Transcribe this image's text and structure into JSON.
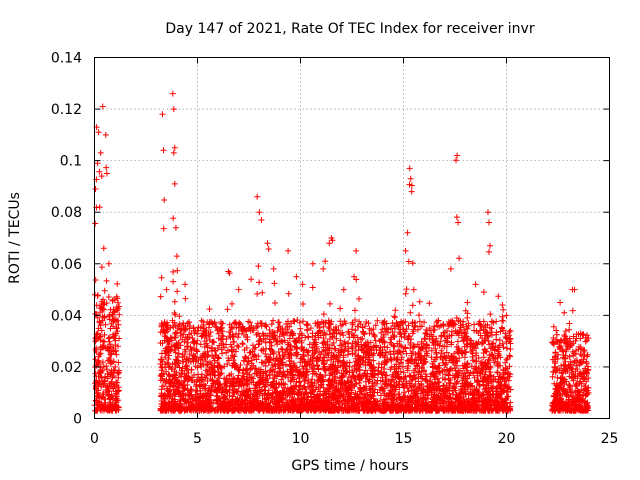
{
  "chart_data": {
    "type": "scatter",
    "title": "Day 147 of 2021, Rate Of TEC Index for receiver invr",
    "xlabel": "GPS time / hours",
    "ylabel": "ROTI / TECUs",
    "xlim": [
      0,
      25
    ],
    "ylim": [
      0,
      0.14
    ],
    "xticks": [
      0,
      5,
      10,
      15,
      20,
      25
    ],
    "yticks": [
      0,
      0.02,
      0.04,
      0.06,
      0.08,
      0.1,
      0.12,
      0.14
    ],
    "xtick_labels": [
      "0",
      "5",
      "10",
      "15",
      "20",
      "25"
    ],
    "ytick_labels": [
      "0",
      "0.02",
      "0.04",
      "0.06",
      "0.08",
      "0.1",
      "0.12",
      "0.14"
    ],
    "grid": true,
    "marker": "plus",
    "series": [
      {
        "name": "ROTI",
        "color": "#ff0000",
        "segments": [
          {
            "x_start": 0.0,
            "x_end": 1.2,
            "typical_max": 0.045
          },
          {
            "x_start": 3.2,
            "x_end": 20.2,
            "typical_max": 0.035
          },
          {
            "x_start": 22.2,
            "x_end": 24.0,
            "typical_max": 0.03
          }
        ],
        "peaks": [
          [
            0.1,
            0.113
          ],
          [
            0.15,
            0.099
          ],
          [
            0.2,
            0.111
          ],
          [
            0.3,
            0.103
          ],
          [
            0.4,
            0.121
          ],
          [
            0.55,
            0.11
          ],
          [
            0.05,
            0.089
          ],
          [
            0.35,
            0.094
          ],
          [
            0.6,
            0.095
          ],
          [
            0.25,
            0.082
          ],
          [
            0.45,
            0.066
          ],
          [
            0.7,
            0.06
          ],
          [
            0.9,
            0.046
          ],
          [
            1.1,
            0.042
          ],
          [
            3.3,
            0.118
          ],
          [
            3.35,
            0.104
          ],
          [
            3.8,
            0.126
          ],
          [
            3.85,
            0.12
          ],
          [
            3.85,
            0.103
          ],
          [
            3.9,
            0.105
          ],
          [
            3.9,
            0.091
          ],
          [
            3.95,
            0.074
          ],
          [
            4.0,
            0.063
          ],
          [
            3.5,
            0.05
          ],
          [
            4.4,
            0.052
          ],
          [
            5.0,
            0.034
          ],
          [
            6.5,
            0.057
          ],
          [
            7.0,
            0.05
          ],
          [
            7.6,
            0.054
          ],
          [
            7.9,
            0.086
          ],
          [
            8.0,
            0.08
          ],
          [
            8.1,
            0.077
          ],
          [
            8.4,
            0.068
          ],
          [
            8.7,
            0.058
          ],
          [
            9.4,
            0.065
          ],
          [
            9.8,
            0.055
          ],
          [
            10.1,
            0.052
          ],
          [
            10.6,
            0.06
          ],
          [
            11.1,
            0.058
          ],
          [
            11.2,
            0.061
          ],
          [
            11.4,
            0.068
          ],
          [
            11.5,
            0.07
          ],
          [
            12.1,
            0.05
          ],
          [
            12.6,
            0.055
          ],
          [
            12.7,
            0.065
          ],
          [
            13.3,
            0.037
          ],
          [
            14.6,
            0.042
          ],
          [
            15.1,
            0.065
          ],
          [
            15.2,
            0.072
          ],
          [
            15.3,
            0.097
          ],
          [
            15.35,
            0.093
          ],
          [
            15.4,
            0.088
          ],
          [
            15.5,
            0.05
          ],
          [
            17.3,
            0.058
          ],
          [
            17.6,
            0.102
          ],
          [
            17.65,
            0.076
          ],
          [
            18.1,
            0.045
          ],
          [
            18.5,
            0.052
          ],
          [
            18.9,
            0.049
          ],
          [
            19.1,
            0.08
          ],
          [
            19.15,
            0.076
          ],
          [
            19.2,
            0.067
          ],
          [
            19.8,
            0.044
          ],
          [
            20.0,
            0.04
          ],
          [
            22.6,
            0.045
          ],
          [
            22.8,
            0.041
          ],
          [
            23.2,
            0.05
          ],
          [
            23.3,
            0.05
          ],
          [
            23.6,
            0.033
          ]
        ]
      }
    ]
  }
}
